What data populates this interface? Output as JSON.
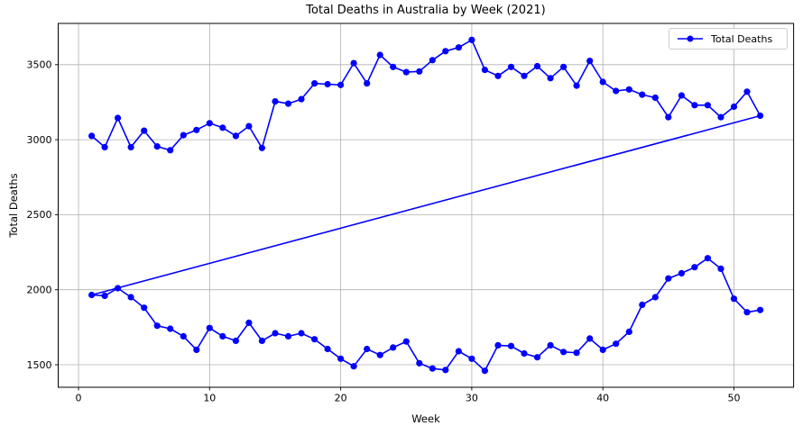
{
  "title": "Total Deaths in Australia by Week (2021)",
  "chart_data": {
    "type": "line",
    "title": "Total Deaths in Australia by Week (2021)",
    "xlabel": "Week",
    "ylabel": "Total Deaths",
    "legend": {
      "position": "upper right",
      "entries": [
        "Total Deaths"
      ]
    },
    "line_color": "#0000ff",
    "marker": "o",
    "grid": true,
    "grid_color": "#b0b0b0",
    "background": "#ffffff",
    "xlim": [
      -1.55,
      54.55
    ],
    "ylim": [
      1350,
      3775
    ],
    "x_ticks": [
      0,
      10,
      20,
      30,
      40,
      50
    ],
    "y_ticks": [
      1500,
      2000,
      2500,
      3000,
      3500
    ],
    "series": [
      {
        "name": "Total Deaths",
        "segments": [
          {
            "pass": "first",
            "x": [
              1,
              2,
              3,
              4,
              5,
              6,
              7,
              8,
              9,
              10,
              11,
              12,
              13,
              14,
              15,
              16,
              17,
              18,
              19,
              20,
              21,
              22,
              23,
              24,
              25,
              26,
              27,
              28,
              29,
              30,
              31,
              32,
              33,
              34,
              35,
              36,
              37,
              38,
              39,
              40,
              41,
              42,
              43,
              44,
              45,
              46,
              47,
              48,
              49,
              50,
              51,
              52
            ],
            "y": [
              3025,
              2950,
              3145,
              2950,
              3060,
              2955,
              2930,
              3030,
              3065,
              3110,
              3080,
              3025,
              3090,
              2945,
              3255,
              3240,
              3270,
              3375,
              3370,
              3365,
              3510,
              3375,
              3565,
              3485,
              3450,
              3455,
              3530,
              3590,
              3615,
              3665,
              3465,
              3425,
              3485,
              3425,
              3490,
              3410,
              3485,
              3360,
              3525,
              3385,
              3325,
              3335,
              3300,
              3280,
              3150,
              3295,
              3230,
              3230,
              3150,
              3220,
              3320,
              3160
            ]
          },
          {
            "pass": "second",
            "x": [
              1,
              2,
              3,
              4,
              5,
              6,
              7,
              8,
              9,
              10,
              11,
              12,
              13,
              14,
              15,
              16,
              17,
              18,
              19,
              20,
              21,
              22,
              23,
              24,
              25,
              26,
              27,
              28,
              29,
              30,
              31,
              32,
              33,
              34,
              35,
              36,
              37,
              38,
              39,
              40,
              41,
              42,
              43,
              44,
              45,
              46,
              47,
              48,
              49,
              50,
              51,
              52
            ],
            "y": [
              1965,
              1960,
              2010,
              1950,
              1880,
              1760,
              1740,
              1690,
              1600,
              1745,
              1690,
              1660,
              1780,
              1660,
              1710,
              1690,
              1710,
              1670,
              1605,
              1540,
              1490,
              1605,
              1565,
              1615,
              1655,
              1510,
              1475,
              1465,
              1590,
              1540,
              1460,
              1630,
              1625,
              1575,
              1550,
              1630,
              1585,
              1580,
              1675,
              1600,
              1640,
              1720,
              1900,
              1950,
              2075,
              2110,
              2150,
              2210,
              2140,
              1940,
              1850,
              1865
            ]
          }
        ]
      }
    ]
  }
}
